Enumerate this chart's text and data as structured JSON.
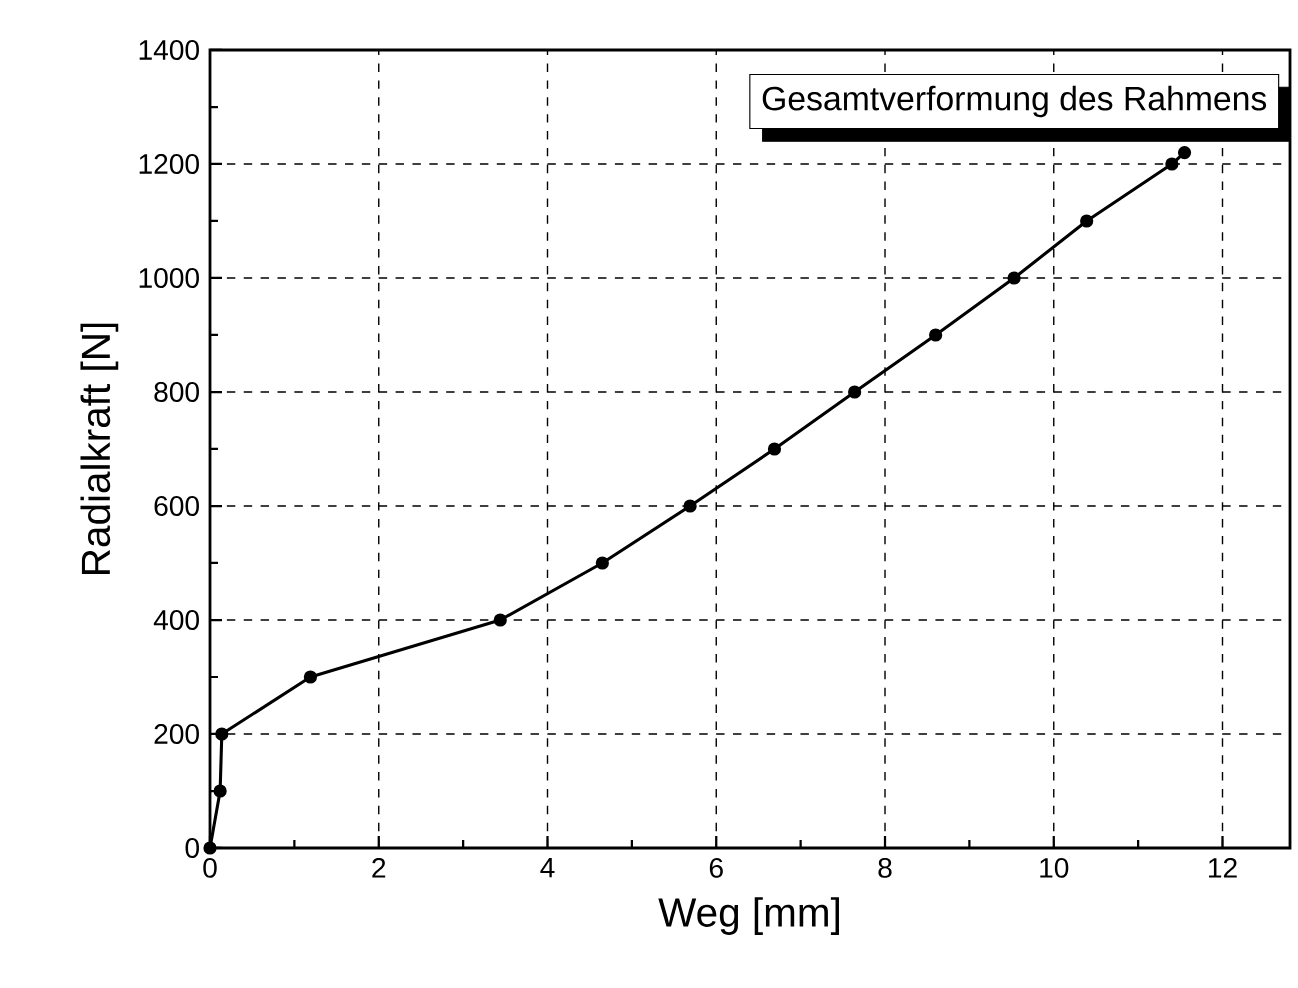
{
  "chart_data": {
    "type": "line",
    "xlabel": "Weg [mm]",
    "ylabel": "Radialkraft [N]",
    "annotations": [
      "Gesamtverformung des Rahmens"
    ],
    "series": [
      {
        "color": "#000000",
        "x": [
          0,
          0.12,
          0.14,
          1.19,
          3.44,
          4.65,
          5.69,
          6.69,
          7.64,
          8.6,
          9.53,
          10.39,
          11.4,
          11.55
        ],
        "values": [
          0,
          100,
          200,
          300,
          400,
          500,
          600,
          700,
          800,
          900,
          1000,
          1100,
          1200,
          1220
        ]
      }
    ],
    "xlim": [
      0,
      12.8
    ],
    "ylim": [
      0,
      1400
    ],
    "xticks": [
      0,
      2,
      4,
      6,
      8,
      10,
      12
    ],
    "yticks": [
      0,
      200,
      400,
      600,
      800,
      1000,
      1200,
      1400
    ],
    "grid": true,
    "marker": "circle",
    "line_style": "solid"
  }
}
